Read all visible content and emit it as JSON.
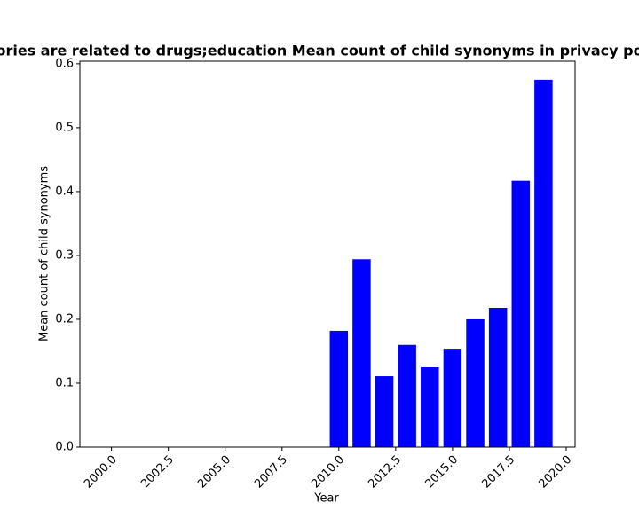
{
  "chart_data": {
    "type": "bar",
    "title": "ories are related to drugs;education Mean count of child synonyms in privacy po",
    "x_label": "Year",
    "y_label": "Mean count of child synonyms",
    "x": [
      2000,
      2001,
      2002,
      2003,
      2004,
      2005,
      2006,
      2007,
      2008,
      2009,
      2010,
      2011,
      2012,
      2013,
      2014,
      2015,
      2016,
      2017,
      2018,
      2019
    ],
    "values": [
      0,
      0,
      0,
      0,
      0,
      0,
      0,
      0,
      0,
      0,
      0.182,
      0.294,
      0.111,
      0.16,
      0.125,
      0.154,
      0.2,
      0.218,
      0.417,
      0.575
    ],
    "color": "#0000ff",
    "xlim": [
      1998.61,
      2020.39
    ],
    "xticks": [
      {
        "value": 2000,
        "label": "2000.0"
      },
      {
        "value": 2002.5,
        "label": "2002.5"
      },
      {
        "value": 2005,
        "label": "2005.0"
      },
      {
        "value": 2007.5,
        "label": "2007.5"
      },
      {
        "value": 2010,
        "label": "2010.0"
      },
      {
        "value": 2012.5,
        "label": "2012.5"
      },
      {
        "value": 2015,
        "label": "2015.0"
      },
      {
        "value": 2017.5,
        "label": "2017.5"
      },
      {
        "value": 2020,
        "label": "2020.0"
      }
    ],
    "ylim": [
      0,
      0.604
    ],
    "yticks": [
      {
        "value": 0,
        "label": "0.0"
      },
      0.1,
      0.2,
      0.3,
      0.4,
      0.5,
      0.6
    ],
    "grid": false
  }
}
